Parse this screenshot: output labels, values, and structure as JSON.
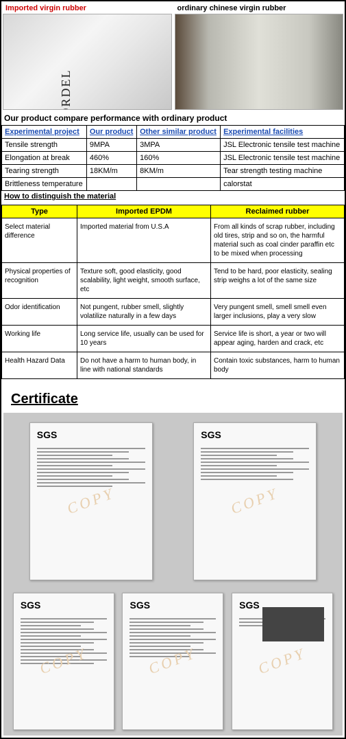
{
  "images": {
    "left_label": "Imported virgin rubber",
    "right_label": "ordinary chinese virgin rubber",
    "left_label_color": "#cc0000",
    "right_label_color": "#000000"
  },
  "table1": {
    "caption": "Our product compare performance with ordinary product",
    "header_color": "#1a4bb3",
    "headers": [
      "Experimental project",
      "Our product",
      "Other similar product",
      "Experimental facilities"
    ],
    "rows": [
      [
        "Tensile strength",
        "9MPA",
        "3MPA",
        " JSL Electronic tensile test machine"
      ],
      [
        "Elongation at break",
        "460%",
        "160%",
        " JSL Electronic tensile test machine"
      ],
      [
        "Tearing strength",
        "18KM/m",
        "8KM/m",
        "Tear strength testing machine"
      ],
      [
        "Brittleness temperature",
        "",
        "",
        "calorstat"
      ]
    ]
  },
  "table2": {
    "caption": "How to distinguish the material",
    "header_bg": "#ffff00",
    "headers": [
      "Type",
      "Imported EPDM",
      "Reclaimed rubber"
    ],
    "rows": [
      [
        "Select material difference",
        "Imported material from U.S.A",
        "From all kinds of scrap rubber, including old tires, strip and so on, the harmful material such as coal cinder paraffin etc to be mixed when processing"
      ],
      [
        "Physical properties of recognition",
        "Texture soft, good elasticity, good scalability, light weight, smooth surface, etc",
        "Tend to be hard, poor elasticity, sealing strip weighs a lot of the same size"
      ],
      [
        "Odor identification",
        "Not pungent, rubber smell, slightly volatilize naturally in a few days",
        "Very pungent smell, smell smell even larger inclusions, play a very slow"
      ],
      [
        "Working life",
        "Long service life, usually can be used for 10 years",
        "Service life is short, a year or two will appear aging, harden and crack, etc"
      ],
      [
        "Health Hazard Data",
        "Do not have a harm to human body, in line with national standards",
        "Contain toxic substances, harm to human body"
      ]
    ]
  },
  "certificate": {
    "heading": "Certificate",
    "logo": "SGS",
    "watermark": "COPY",
    "background": "#c8c8c8",
    "top_count": 2,
    "bottom_count": 3
  }
}
